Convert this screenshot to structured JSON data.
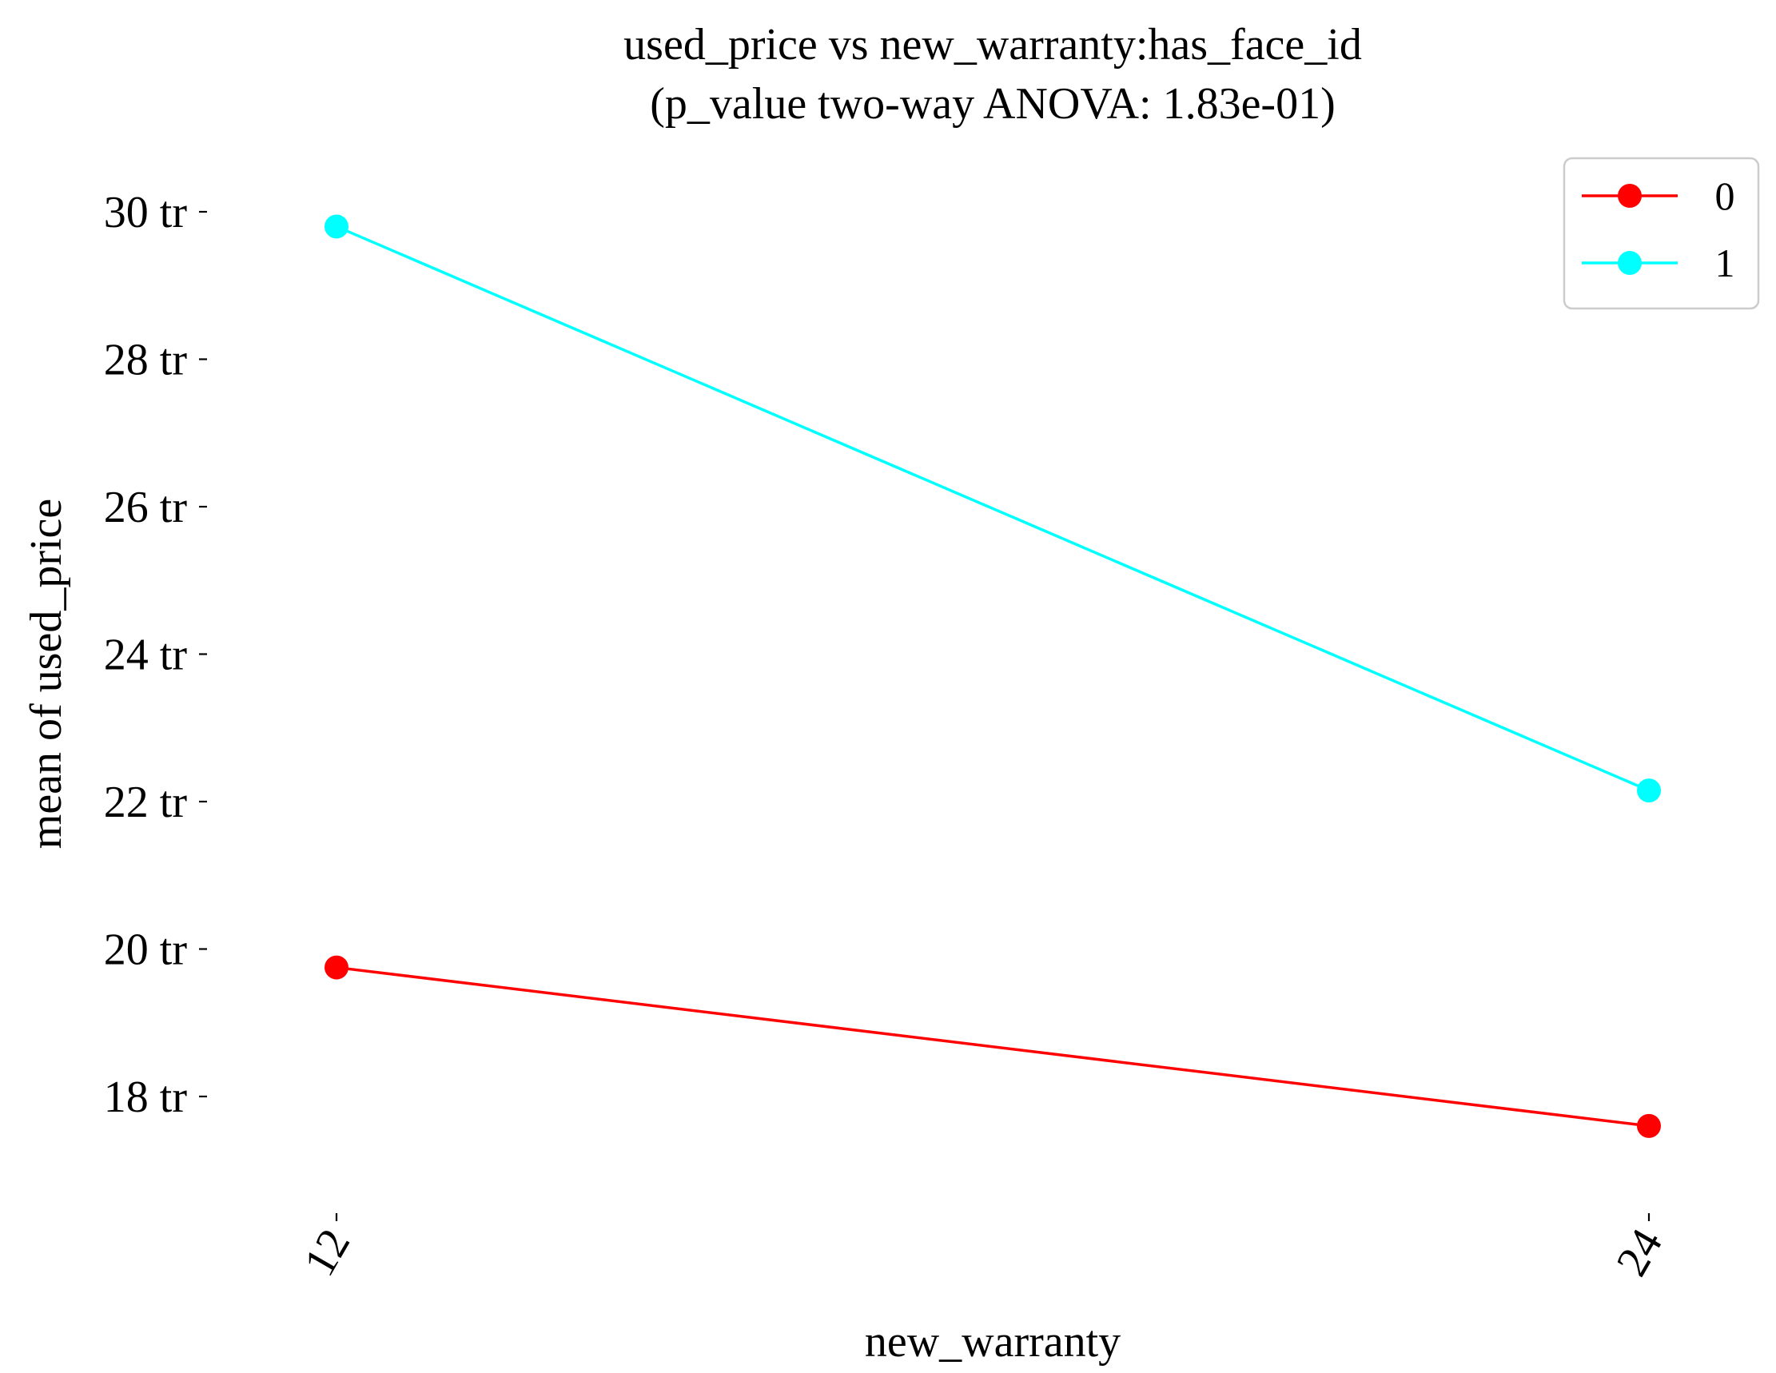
{
  "chart_data": {
    "type": "line",
    "title": "used_price vs new_warranty:has_face_id",
    "subtitle": "(p_value two-way ANOVA: 1.83e-01)",
    "xlabel": "new_warranty",
    "ylabel": "mean of used_price",
    "categories": [
      "12",
      "24"
    ],
    "y_ticks": [
      18,
      20,
      22,
      24,
      26,
      28,
      30
    ],
    "y_tick_labels": [
      "18 tr",
      "20 tr",
      "22 tr",
      "24 tr",
      "26 tr",
      "28 tr",
      "30 tr"
    ],
    "ylim": [
      16.6,
      31.1
    ],
    "grid": false,
    "legend_position": "top-right",
    "series": [
      {
        "name": "0",
        "color": "#ff0000",
        "values": [
          19.75,
          17.6
        ]
      },
      {
        "name": "1",
        "color": "#00ffff",
        "values": [
          29.8,
          22.15
        ]
      }
    ]
  }
}
